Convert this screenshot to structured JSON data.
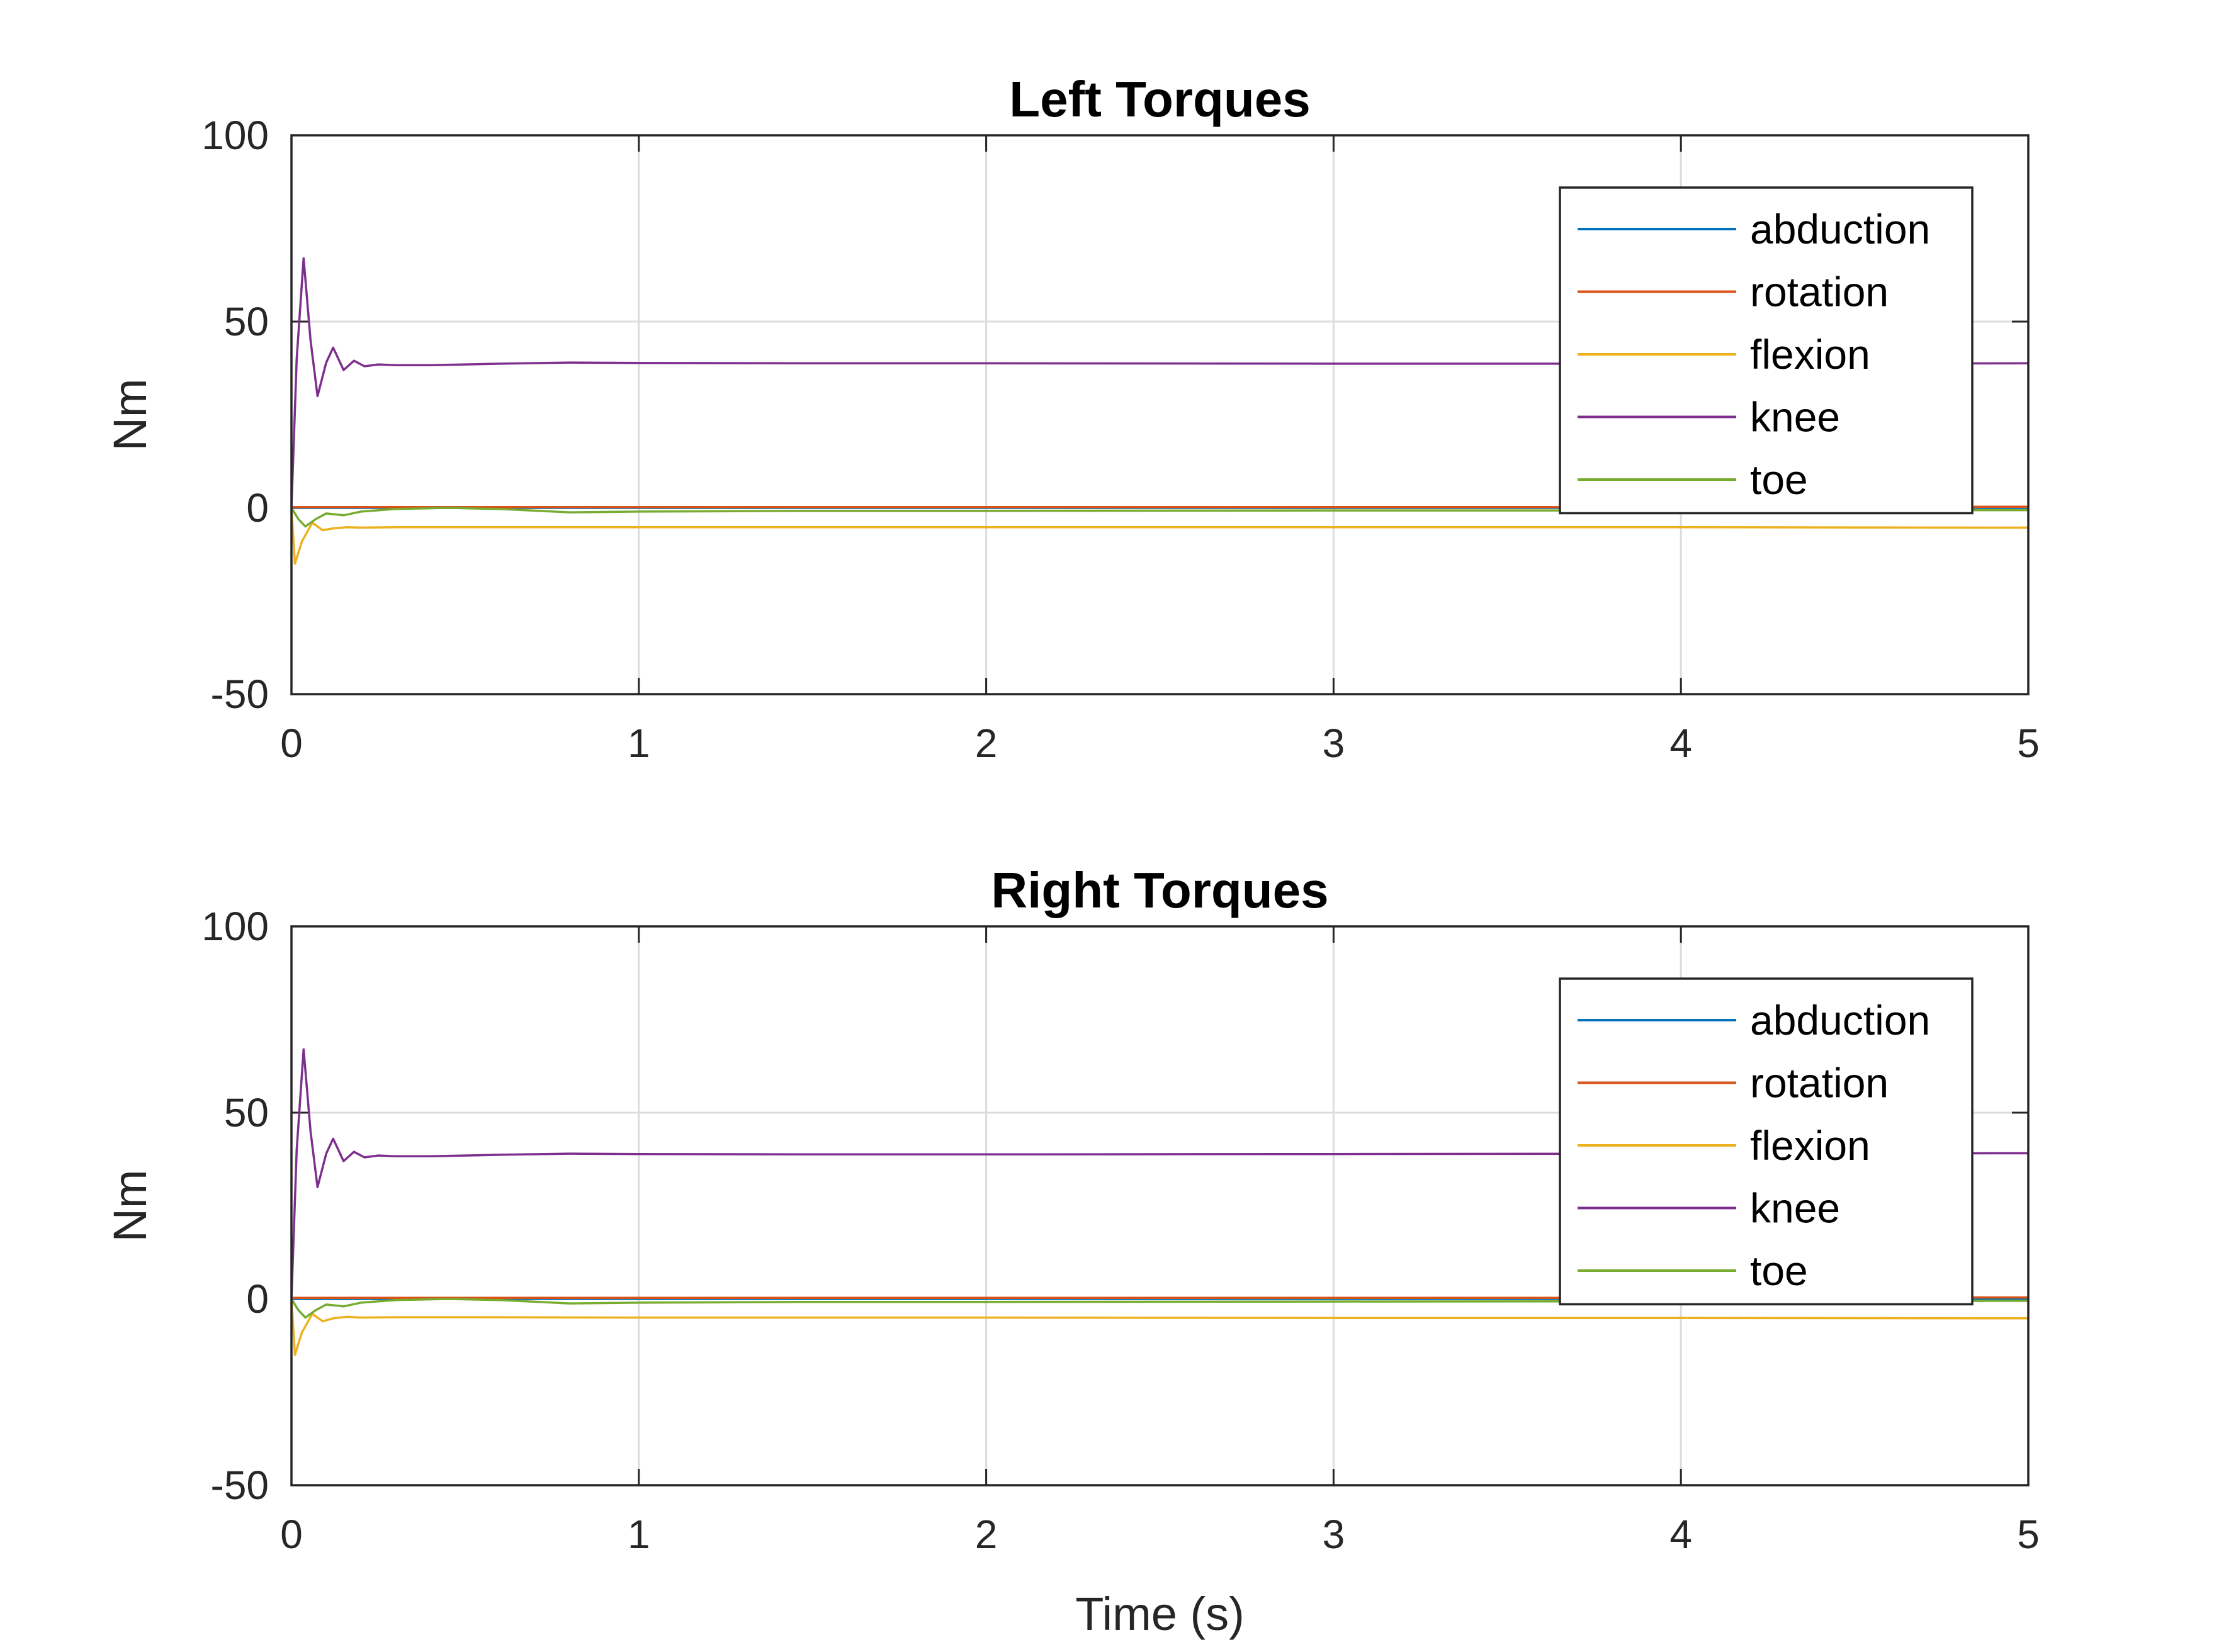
{
  "chart_data": [
    {
      "type": "line",
      "title": "Left Torques",
      "xlabel": "",
      "ylabel": "Nm",
      "xlim": [
        0,
        5
      ],
      "ylim": [
        -50,
        100
      ],
      "xticks": [
        "0",
        "1",
        "2",
        "3",
        "4",
        "5"
      ],
      "yticks": [
        "-50",
        "0",
        "50",
        "100"
      ],
      "grid": true,
      "legend_position": "top-right",
      "series": [
        {
          "name": "abduction",
          "color": "#0072BD",
          "x": [
            0,
            0.5,
            1,
            2,
            3,
            4,
            5
          ],
          "y": [
            0,
            0,
            0,
            0,
            0,
            0,
            0
          ]
        },
        {
          "name": "rotation",
          "color": "#D95319",
          "x": [
            0,
            0.5,
            1,
            2,
            3,
            4,
            5
          ],
          "y": [
            0.2,
            0.2,
            0.2,
            0.2,
            0.2,
            0.2,
            0.3
          ]
        },
        {
          "name": "flexion",
          "color": "#EDB120",
          "x": [
            0,
            0.01,
            0.03,
            0.06,
            0.09,
            0.12,
            0.16,
            0.2,
            0.3,
            0.5,
            1,
            2,
            3,
            4,
            5
          ],
          "y": [
            0,
            -15,
            -9,
            -4,
            -6,
            -5.5,
            -5.2,
            -5.3,
            -5.2,
            -5.2,
            -5.2,
            -5.2,
            -5.2,
            -5.2,
            -5.3
          ]
        },
        {
          "name": "knee",
          "color": "#7E2F8E",
          "x": [
            0,
            0.015,
            0.035,
            0.055,
            0.075,
            0.1,
            0.12,
            0.15,
            0.18,
            0.21,
            0.25,
            0.3,
            0.4,
            0.6,
            0.8,
            1,
            1.5,
            2,
            3,
            4,
            5
          ],
          "y": [
            0,
            40,
            67,
            45,
            30,
            39,
            43,
            37,
            39.5,
            38,
            38.5,
            38.3,
            38.3,
            38.7,
            39,
            38.9,
            38.8,
            38.8,
            38.7,
            38.7,
            38.8
          ]
        },
        {
          "name": "toe",
          "color": "#77AC30",
          "x": [
            0,
            0.02,
            0.04,
            0.07,
            0.1,
            0.15,
            0.2,
            0.3,
            0.45,
            0.6,
            0.8,
            1,
            1.5,
            2,
            3,
            4,
            5
          ],
          "y": [
            0,
            -3,
            -5,
            -3,
            -1.5,
            -2,
            -1,
            -0.3,
            0,
            -0.3,
            -1.2,
            -1,
            -0.8,
            -0.8,
            -0.7,
            -0.7,
            -0.6
          ]
        }
      ]
    },
    {
      "type": "line",
      "title": "Right Torques",
      "xlabel": "Time (s)",
      "ylabel": "Nm",
      "xlim": [
        0,
        5
      ],
      "ylim": [
        -50,
        100
      ],
      "xticks": [
        "0",
        "1",
        "2",
        "3",
        "4",
        "5"
      ],
      "yticks": [
        "-50",
        "0",
        "50",
        "100"
      ],
      "grid": true,
      "legend_position": "top-right",
      "series": [
        {
          "name": "abduction",
          "color": "#0072BD",
          "x": [
            0,
            0.5,
            1,
            2,
            3,
            4,
            5
          ],
          "y": [
            0,
            0,
            0,
            0,
            0,
            0,
            0
          ]
        },
        {
          "name": "rotation",
          "color": "#D95319",
          "x": [
            0,
            0.5,
            1,
            2,
            3,
            4,
            5
          ],
          "y": [
            0.3,
            0.3,
            0.3,
            0.3,
            0.3,
            0.3,
            0.4
          ]
        },
        {
          "name": "flexion",
          "color": "#EDB120",
          "x": [
            0,
            0.01,
            0.03,
            0.06,
            0.09,
            0.12,
            0.16,
            0.2,
            0.3,
            0.5,
            1,
            2,
            3,
            4,
            5
          ],
          "y": [
            0,
            -15,
            -9,
            -4,
            -6,
            -5.2,
            -4.8,
            -5,
            -4.9,
            -4.9,
            -5,
            -5,
            -5.1,
            -5.1,
            -5.2
          ]
        },
        {
          "name": "knee",
          "color": "#7E2F8E",
          "x": [
            0,
            0.015,
            0.035,
            0.055,
            0.075,
            0.1,
            0.12,
            0.15,
            0.18,
            0.21,
            0.25,
            0.3,
            0.4,
            0.6,
            0.8,
            1,
            1.5,
            2,
            3,
            4,
            5
          ],
          "y": [
            0,
            40,
            67,
            45,
            30,
            39,
            43,
            37,
            39.5,
            38,
            38.5,
            38.3,
            38.3,
            38.7,
            39,
            38.9,
            38.8,
            38.8,
            38.9,
            39,
            39.1
          ]
        },
        {
          "name": "toe",
          "color": "#77AC30",
          "x": [
            0,
            0.02,
            0.04,
            0.07,
            0.1,
            0.15,
            0.2,
            0.3,
            0.45,
            0.6,
            0.8,
            1,
            1.5,
            2,
            3,
            4,
            5
          ],
          "y": [
            0,
            -3,
            -5,
            -3,
            -1.5,
            -2,
            -1,
            -0.3,
            0,
            -0.3,
            -1.2,
            -1,
            -0.8,
            -0.8,
            -0.7,
            -0.6,
            -0.5
          ]
        }
      ]
    }
  ]
}
